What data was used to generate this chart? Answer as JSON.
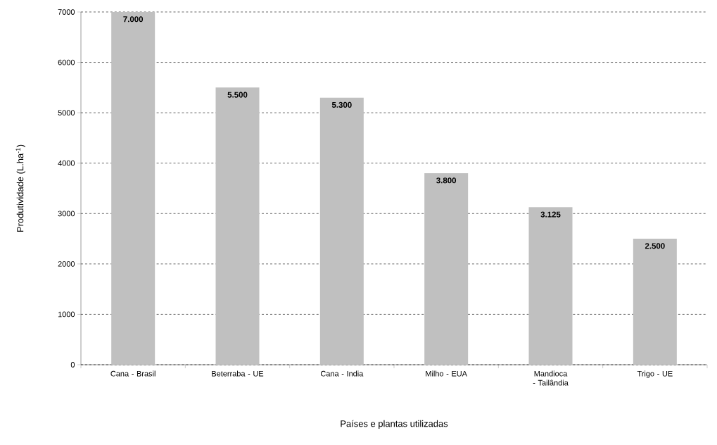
{
  "chart_data": {
    "type": "bar",
    "xlabel": "Países e plantas utilizadas",
    "ylabel": "Produtividade (L.ha$^{-1}$)",
    "categories": [
      "Cana - Brasil",
      "Beterraba - UE",
      "Cana - India",
      "Milho - EUA",
      "Mandioca - Tailândia",
      "Trigo - UE"
    ],
    "values": [
      7000,
      5500,
      5300,
      3800,
      3125,
      2500
    ],
    "value_labels": [
      "7.000",
      "5.500",
      "5.300",
      "3.800",
      "3.125",
      "2.500"
    ],
    "color": "#c0c0c0",
    "ylim": [
      0,
      7000
    ],
    "yticks": [
      0,
      1000,
      2000,
      3000,
      4000,
      5000,
      6000,
      7000
    ],
    "grid": "y"
  }
}
